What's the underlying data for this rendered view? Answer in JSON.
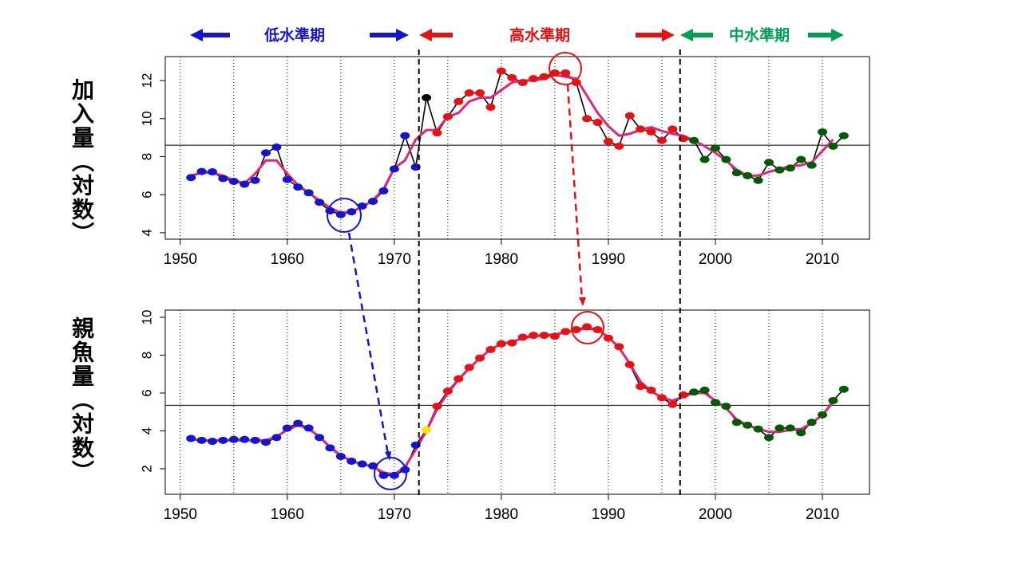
{
  "header": {
    "regimes": [
      {
        "label": "低水準期",
        "color": "#1414d2"
      },
      {
        "label": "高水準期",
        "color": "#e81010"
      },
      {
        "label": "中水準期",
        "color": "#00a050"
      }
    ]
  },
  "regime_boundaries": [
    1972.3,
    1996.7
  ],
  "chart_data": [
    {
      "type": "line",
      "ylabel": "加入量（対数）",
      "x": [
        1951,
        1952,
        1953,
        1954,
        1955,
        1956,
        1957,
        1958,
        1959,
        1960,
        1961,
        1962,
        1963,
        1964,
        1965,
        1966,
        1967,
        1968,
        1969,
        1970,
        1971,
        1972,
        1973,
        1974,
        1975,
        1976,
        1977,
        1978,
        1979,
        1980,
        1981,
        1982,
        1983,
        1984,
        1985,
        1986,
        1987,
        1988,
        1989,
        1990,
        1991,
        1992,
        1993,
        1994,
        1995,
        1996,
        1997,
        1998,
        1999,
        2000,
        2001,
        2002,
        2003,
        2004,
        2005,
        2006,
        2007,
        2008,
        2009,
        2010,
        2011,
        2012
      ],
      "xlim": [
        1948.6,
        2014.4
      ],
      "ylim": [
        3.66,
        13.26
      ],
      "xticks": [
        1950,
        1960,
        1970,
        1980,
        1990,
        2000,
        2010
      ],
      "xminor": [
        1955,
        1965,
        1975,
        1985,
        1995,
        2005
      ],
      "yticks": [
        4,
        6,
        8,
        10,
        12
      ],
      "hline": 8.6,
      "series": [
        {
          "color": "#000000",
          "values": [
            6.9,
            7.22,
            7.2,
            6.85,
            6.7,
            6.55,
            6.75,
            8.2,
            8.5,
            6.8,
            6.4,
            6.1,
            5.6,
            5.15,
            4.95,
            5.1,
            5.4,
            5.65,
            6.2,
            7.35,
            9.1,
            7.45,
            11.1,
            9.25,
            10.1,
            10.9,
            11.35,
            11.35,
            10.6,
            12.5,
            12.15,
            11.9,
            12.1,
            12.2,
            12.4,
            12.4,
            11.9,
            10.0,
            9.8,
            8.8,
            8.55,
            10.15,
            9.45,
            9.3,
            8.85,
            9.45,
            8.95,
            8.85,
            7.85,
            8.45,
            7.85,
            7.15,
            7.0,
            6.75,
            7.7,
            7.3,
            7.4,
            7.85,
            7.55,
            9.3,
            8.55,
            9.1
          ],
          "point_colors": [
            "#1414d2",
            "#1414d2",
            "#1414d2",
            "#1414d2",
            "#1414d2",
            "#1414d2",
            "#1414d2",
            "#1414d2",
            "#1414d2",
            "#1414d2",
            "#1414d2",
            "#1414d2",
            "#1414d2",
            "#1414d2",
            "#1414d2",
            "#1414d2",
            "#1414d2",
            "#1414d2",
            "#1414d2",
            "#1414d2",
            "#1414d2",
            "#1414d2",
            "#000000",
            "#e81010",
            "#e81010",
            "#e81010",
            "#e81010",
            "#e81010",
            "#e81010",
            "#e81010",
            "#e81010",
            "#e81010",
            "#e81010",
            "#e81010",
            "#e81010",
            "#e81010",
            "#e81010",
            "#e81010",
            "#e81010",
            "#e81010",
            "#e81010",
            "#e81010",
            "#e81010",
            "#e81010",
            "#e81010",
            "#e81010",
            "#e81010",
            "#005a00",
            "#005a00",
            "#005a00",
            "#005a00",
            "#005a00",
            "#005a00",
            "#005a00",
            "#005a00",
            "#005a00",
            "#005a00",
            "#005a00",
            "#005a00",
            "#005a00",
            "#005a00",
            "#005a00"
          ]
        },
        {
          "color": "#e0267a",
          "values": [
            7.0,
            7.15,
            7.15,
            7.0,
            6.75,
            6.6,
            7.1,
            7.8,
            7.8,
            7.1,
            6.5,
            6.1,
            5.7,
            5.3,
            5.05,
            5.1,
            5.35,
            5.7,
            6.3,
            7.4,
            7.8,
            8.9,
            9.4,
            9.4,
            10.1,
            10.3,
            10.9,
            11.1,
            11.1,
            11.5,
            11.9,
            12.0,
            12.0,
            12.1,
            12.3,
            12.2,
            12.1,
            11.2,
            10.3,
            9.6,
            9.1,
            9.2,
            9.4,
            9.55,
            9.35,
            9.2,
            9.1,
            8.85,
            8.55,
            8.2,
            7.8,
            7.3,
            7.0,
            7.0,
            7.2,
            7.35,
            7.5,
            7.55,
            7.7,
            8.3,
            8.9,
            null
          ]
        }
      ]
    },
    {
      "type": "line",
      "ylabel": "親魚量（対数）",
      "x": [
        1951,
        1952,
        1953,
        1954,
        1955,
        1956,
        1957,
        1958,
        1959,
        1960,
        1961,
        1962,
        1963,
        1964,
        1965,
        1966,
        1967,
        1968,
        1969,
        1970,
        1971,
        1972,
        1973,
        1974,
        1975,
        1976,
        1977,
        1978,
        1979,
        1980,
        1981,
        1982,
        1983,
        1984,
        1985,
        1986,
        1987,
        1988,
        1989,
        1990,
        1991,
        1992,
        1993,
        1994,
        1995,
        1996,
        1997,
        1998,
        1999,
        2000,
        2001,
        2002,
        2003,
        2004,
        2005,
        2006,
        2007,
        2008,
        2009,
        2010,
        2011,
        2012
      ],
      "xlim": [
        1948.6,
        2014.4
      ],
      "ylim": [
        0.65,
        10.38
      ],
      "xticks": [
        1950,
        1960,
        1970,
        1980,
        1990,
        2000,
        2010
      ],
      "xminor": [
        1955,
        1965,
        1975,
        1985,
        1995,
        2005
      ],
      "yticks": [
        2,
        4,
        6,
        8,
        10
      ],
      "hline": 5.35,
      "series": [
        {
          "color": "#000000",
          "values": [
            3.6,
            3.5,
            3.45,
            3.5,
            3.55,
            3.55,
            3.5,
            3.4,
            3.65,
            4.15,
            4.4,
            4.15,
            3.65,
            3.1,
            2.65,
            2.4,
            2.25,
            2.15,
            1.65,
            1.65,
            1.95,
            3.25,
            4.05,
            5.3,
            6.1,
            6.75,
            7.35,
            7.85,
            8.3,
            8.6,
            8.65,
            8.95,
            9.05,
            9.05,
            9.0,
            9.25,
            9.35,
            9.5,
            9.35,
            8.9,
            8.45,
            7.5,
            6.35,
            6.15,
            5.75,
            5.4,
            5.9,
            6.05,
            6.15,
            5.5,
            5.3,
            4.45,
            4.3,
            4.1,
            3.65,
            4.15,
            4.15,
            3.9,
            4.45,
            4.85,
            5.6,
            6.2
          ],
          "point_colors": [
            "#1414d2",
            "#1414d2",
            "#1414d2",
            "#1414d2",
            "#1414d2",
            "#1414d2",
            "#1414d2",
            "#1414d2",
            "#1414d2",
            "#1414d2",
            "#1414d2",
            "#1414d2",
            "#1414d2",
            "#1414d2",
            "#1414d2",
            "#1414d2",
            "#1414d2",
            "#1414d2",
            "#1414d2",
            "#1414d2",
            "#1414d2",
            "#1414d2",
            "#ffe600",
            "#e81010",
            "#e81010",
            "#e81010",
            "#e81010",
            "#e81010",
            "#e81010",
            "#e81010",
            "#e81010",
            "#e81010",
            "#e81010",
            "#e81010",
            "#e81010",
            "#e81010",
            "#e81010",
            "#e81010",
            "#e81010",
            "#e81010",
            "#e81010",
            "#e81010",
            "#e81010",
            "#e81010",
            "#e81010",
            "#e81010",
            "#e81010",
            "#005a00",
            "#005a00",
            "#005a00",
            "#005a00",
            "#005a00",
            "#005a00",
            "#005a00",
            "#005a00",
            "#005a00",
            "#005a00",
            "#005a00",
            "#005a00",
            "#005a00",
            "#005a00",
            "#005a00"
          ]
        },
        {
          "color": "#e0267a",
          "values": [
            3.55,
            3.5,
            3.5,
            3.5,
            3.5,
            3.5,
            3.5,
            3.5,
            3.7,
            4.05,
            4.3,
            4.1,
            3.7,
            3.15,
            2.7,
            2.4,
            2.25,
            2.1,
            1.8,
            1.7,
            2.1,
            3.0,
            4.0,
            5.15,
            6.0,
            6.7,
            7.3,
            7.85,
            8.3,
            8.6,
            8.7,
            8.9,
            9.0,
            9.05,
            9.1,
            9.2,
            9.35,
            9.4,
            9.35,
            8.95,
            8.4,
            7.55,
            6.6,
            6.1,
            5.75,
            5.6,
            5.8,
            6.0,
            6.0,
            5.6,
            5.2,
            4.6,
            4.3,
            4.1,
            3.95,
            3.95,
            4.05,
            4.1,
            4.4,
            4.85,
            5.5,
            null
          ]
        }
      ]
    }
  ]
}
